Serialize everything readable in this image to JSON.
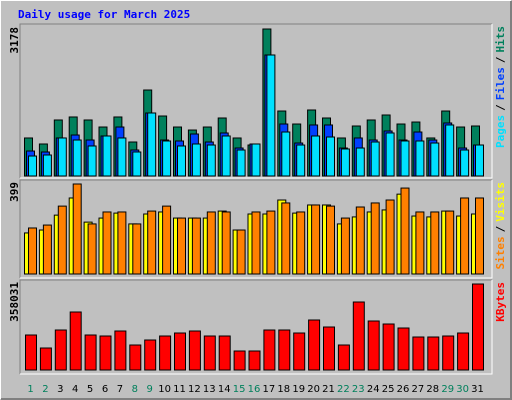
{
  "chart_data": [
    {
      "type": "bar",
      "title": "Daily usage for March 2025",
      "ylim": [
        0,
        3178
      ],
      "yticks": [
        3178
      ],
      "legend_separator": "/",
      "series": [
        {
          "name": "Hits",
          "color": "#00805c",
          "values": [
            822,
            692,
            1211,
            1276,
            1211,
            1059,
            1276,
            735,
            1859,
            1297,
            1059,
            994,
            1059,
            1254,
            822,
            670,
            3178,
            1405,
            1124,
            1427,
            1254,
            822,
            1081,
            1211,
            1319,
            1124,
            1167,
            822,
            1405,
            1059,
            1081
          ]
        },
        {
          "name": "Files",
          "color": "#0040ff",
          "values": [
            540,
            519,
            822,
            886,
            778,
            865,
            1059,
            562,
            1362,
            778,
            757,
            908,
            735,
            930,
            605,
            692,
            2616,
            1124,
            713,
            1103,
            1103,
            605,
            822,
            778,
            973,
            778,
            951,
            778,
            1146,
            605,
            670
          ]
        },
        {
          "name": "Pages",
          "color": "#00e0ff",
          "values": [
            432,
            454,
            822,
            778,
            649,
            865,
            822,
            519,
            1362,
            757,
            649,
            692,
            670,
            865,
            562,
            692,
            2616,
            951,
            670,
            865,
            843,
            584,
            605,
            735,
            930,
            757,
            757,
            713,
            1103,
            562,
            670
          ]
        }
      ]
    },
    {
      "type": "bar",
      "ylim": [
        0,
        399
      ],
      "yticks": [
        399
      ],
      "legend_separator": "/",
      "series": [
        {
          "name": "Visits",
          "color": "#ffff00",
          "values": [
            182,
            195,
            261,
            337,
            230,
            248,
            270,
            222,
            266,
            275,
            248,
            248,
            248,
            279,
            195,
            266,
            266,
            328,
            270,
            306,
            306,
            222,
            253,
            275,
            284,
            354,
            257,
            253,
            279,
            257,
            266
          ]
        },
        {
          "name": "Sites",
          "color": "#ff8000",
          "values": [
            204,
            217,
            301,
            399,
            222,
            275,
            275,
            222,
            279,
            301,
            248,
            248,
            275,
            275,
            195,
            275,
            279,
            315,
            275,
            306,
            301,
            248,
            297,
            315,
            328,
            381,
            275,
            275,
            279,
            337,
            337
          ]
        }
      ]
    },
    {
      "type": "bar",
      "ylim": [
        0,
        358031
      ],
      "yticks": [
        358031
      ],
      "categories": [
        "1",
        "2",
        "3",
        "4",
        "5",
        "6",
        "7",
        "8",
        "9",
        "10",
        "11",
        "12",
        "13",
        "14",
        "15",
        "16",
        "17",
        "18",
        "19",
        "20",
        "21",
        "22",
        "23",
        "24",
        "25",
        "26",
        "27",
        "28",
        "29",
        "30",
        "31"
      ],
      "category_colors": [
        "#00805c",
        "#00805c",
        "#000000",
        "#000000",
        "#000000",
        "#000000",
        "#000000",
        "#00805c",
        "#00805c",
        "#000000",
        "#000000",
        "#000000",
        "#000000",
        "#000000",
        "#00805c",
        "#00805c",
        "#000000",
        "#000000",
        "#000000",
        "#000000",
        "#000000",
        "#00805c",
        "#00805c",
        "#000000",
        "#000000",
        "#000000",
        "#000000",
        "#000000",
        "#00805c",
        "#00805c",
        "#000000"
      ],
      "series": [
        {
          "name": "KBytes",
          "color": "#ff0000",
          "values": [
            145705,
            91586,
            166520,
            241454,
            145705,
            141542,
            162357,
            104075,
            124890,
            141542,
            154031,
            162357,
            141542,
            141542,
            79097,
            79097,
            166520,
            166520,
            154031,
            208150,
            179009,
            104075,
            283084,
            203987,
            191498,
            174846,
            137379,
            137379,
            141542,
            154031,
            358031
          ]
        }
      ]
    }
  ]
}
